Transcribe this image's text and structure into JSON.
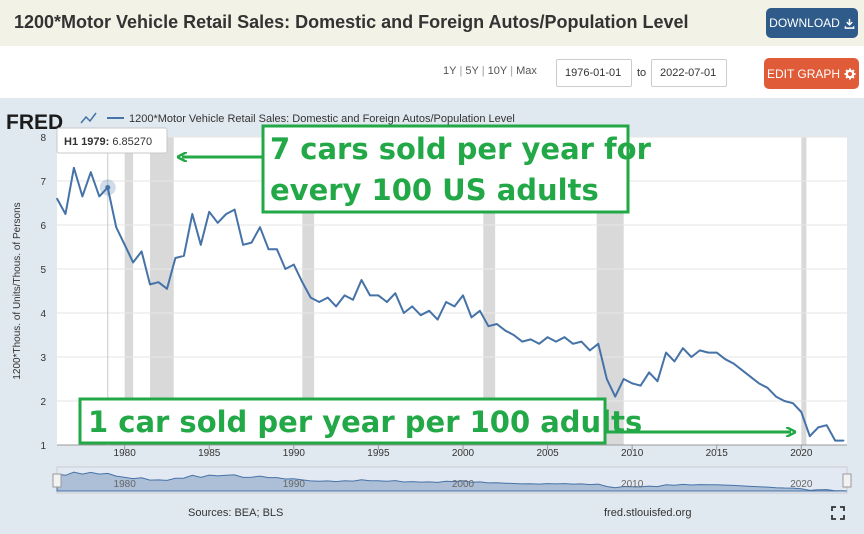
{
  "header": {
    "title": "1200*Motor Vehicle Retail Sales: Domestic and Foreign Autos/Population Level",
    "download_label": "DOWNLOAD"
  },
  "controls": {
    "range_options": [
      "1Y",
      "5Y",
      "10Y",
      "Max"
    ],
    "start_date": "1976-01-01",
    "to_label": "to",
    "end_date": "2022-07-01",
    "edit_label": "EDIT GRAPH"
  },
  "chart_data": {
    "type": "line",
    "title": "1200*Motor Vehicle Retail Sales: Domestic and Foreign Autos/Population Level",
    "xlabel": "",
    "ylabel": "1200*Thous. of Units/Thous. of Persons",
    "ylim": [
      1,
      8
    ],
    "y_ticks": [
      1,
      2,
      3,
      4,
      5,
      6,
      7,
      8
    ],
    "xlim": [
      1976.0,
      2022.7
    ],
    "x_ticks": [
      1980,
      1985,
      1990,
      1995,
      2000,
      2005,
      2010,
      2015,
      2020
    ],
    "grid": "horizontal",
    "series": [
      {
        "name": "1200*Motor Vehicle Retail Sales: Domestic and Foreign Autos/Population Level",
        "color": "#4572a7",
        "x": [
          1976.0,
          1976.5,
          1977.0,
          1977.5,
          1978.0,
          1978.5,
          1979.0,
          1979.5,
          1980.0,
          1980.5,
          1981.0,
          1981.5,
          1982.0,
          1982.5,
          1983.0,
          1983.5,
          1984.0,
          1984.5,
          1985.0,
          1985.5,
          1986.0,
          1986.5,
          1987.0,
          1987.5,
          1988.0,
          1988.5,
          1989.0,
          1989.5,
          1990.0,
          1990.5,
          1991.0,
          1991.5,
          1992.0,
          1992.5,
          1993.0,
          1993.5,
          1994.0,
          1994.5,
          1995.0,
          1995.5,
          1996.0,
          1996.5,
          1997.0,
          1997.5,
          1998.0,
          1998.5,
          1999.0,
          1999.5,
          2000.0,
          2000.5,
          2001.0,
          2001.5,
          2002.0,
          2002.5,
          2003.0,
          2003.5,
          2004.0,
          2004.5,
          2005.0,
          2005.5,
          2006.0,
          2006.5,
          2007.0,
          2007.5,
          2008.0,
          2008.5,
          2009.0,
          2009.5,
          2010.0,
          2010.5,
          2011.0,
          2011.5,
          2012.0,
          2012.5,
          2013.0,
          2013.5,
          2014.0,
          2014.5,
          2015.0,
          2015.5,
          2016.0,
          2016.5,
          2017.0,
          2017.5,
          2018.0,
          2018.5,
          2019.0,
          2019.5,
          2020.0,
          2020.5,
          2021.0,
          2021.5,
          2022.0,
          2022.5
        ],
        "values": [
          6.6,
          6.25,
          7.3,
          6.65,
          7.2,
          6.65,
          6.8527,
          5.95,
          5.55,
          5.15,
          5.4,
          4.65,
          4.7,
          4.55,
          5.25,
          5.3,
          6.25,
          5.55,
          6.3,
          6.05,
          6.25,
          6.35,
          5.55,
          5.6,
          5.95,
          5.45,
          5.45,
          5.0,
          5.1,
          4.7,
          4.35,
          4.25,
          4.35,
          4.15,
          4.4,
          4.3,
          4.75,
          4.4,
          4.4,
          4.25,
          4.45,
          4.0,
          4.15,
          3.95,
          4.05,
          3.85,
          4.25,
          4.15,
          4.4,
          3.9,
          4.05,
          3.7,
          3.75,
          3.6,
          3.5,
          3.35,
          3.4,
          3.3,
          3.45,
          3.35,
          3.45,
          3.3,
          3.35,
          3.15,
          3.3,
          2.5,
          2.1,
          2.5,
          2.4,
          2.35,
          2.65,
          2.45,
          3.1,
          2.9,
          3.2,
          3.0,
          3.15,
          3.1,
          3.1,
          2.95,
          2.85,
          2.7,
          2.55,
          2.4,
          2.3,
          2.1,
          2.0,
          1.95,
          1.75,
          1.2,
          1.4,
          1.45,
          1.1,
          1.1
        ]
      }
    ],
    "recessions": [
      [
        1980.0,
        1980.5
      ],
      [
        1981.5,
        1982.9
      ],
      [
        1990.5,
        1991.2
      ],
      [
        2001.2,
        2001.9
      ],
      [
        2007.9,
        2009.5
      ],
      [
        2020.0,
        2020.3
      ]
    ],
    "tooltip": {
      "label": "H1 1979:",
      "value": "6.85270",
      "x": 1979.0
    },
    "annotations": [
      {
        "line1": "7 cars sold per year for",
        "line2": "every 100 US adults"
      },
      {
        "line1": "1 car sold per year per 100 adults"
      }
    ],
    "navigator_ticks": [
      "1980",
      "1990",
      "2000",
      "2010",
      "2020"
    ]
  },
  "footer": {
    "sources": "Sources: BEA; BLS",
    "site": "fred.stlouisfed.org"
  },
  "colors": {
    "line": "#4572a7",
    "annotation": "#22a846",
    "recession": "#d9d9d9",
    "download_button": "#2f5b8a",
    "edit_button": "#e05c39"
  }
}
